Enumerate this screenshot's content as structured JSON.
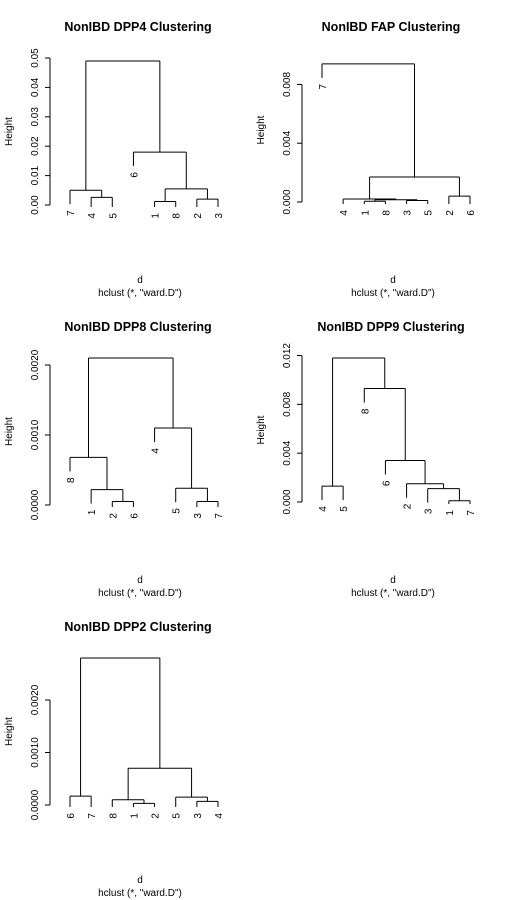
{
  "chart_data": [
    {
      "type": "dendrogram",
      "title": "NonIBD DPP4 Clustering",
      "ylabel": "Height",
      "xlabel": "d",
      "sublabel": "hclust (*, \"ward.D\")",
      "ylim": [
        0,
        0.05
      ],
      "yticks": [
        "0.00",
        "0.01",
        "0.02",
        "0.03",
        "0.04",
        "0.05"
      ],
      "ytick_values": [
        0,
        0.01,
        0.02,
        0.03,
        0.04,
        0.05
      ],
      "leaves": [
        "7",
        "4",
        "5",
        "6",
        "1",
        "8",
        "2",
        "3"
      ],
      "merges": [
        {
          "left": "L1",
          "right": "L2",
          "height": 0.0026
        },
        {
          "left": "L0",
          "right": "M0",
          "height": 0.005
        },
        {
          "left": "L4",
          "right": "L5",
          "height": 0.0012
        },
        {
          "left": "L6",
          "right": "L7",
          "height": 0.002
        },
        {
          "left": "M2",
          "right": "M3",
          "height": 0.0055
        },
        {
          "left": "L3",
          "right": "M4",
          "height": 0.018
        },
        {
          "left": "M1",
          "right": "M5",
          "height": 0.049
        }
      ]
    },
    {
      "type": "dendrogram",
      "title": "NonIBD FAP Clustering",
      "ylabel": "Height",
      "xlabel": "d",
      "sublabel": "hclust (*, \"ward.D\")",
      "ylim": [
        0,
        0.0098
      ],
      "yticks": [
        "0.000",
        "0.004",
        "0.008"
      ],
      "ytick_values": [
        0,
        0.004,
        0.008
      ],
      "leaves": [
        "7",
        "4",
        "1",
        "8",
        "3",
        "5",
        "2",
        "6"
      ],
      "merges": [
        {
          "left": "L2",
          "right": "L3",
          "height": 5e-05
        },
        {
          "left": "L4",
          "right": "L5",
          "height": 0.0001
        },
        {
          "left": "M0",
          "right": "M1",
          "height": 0.00015
        },
        {
          "left": "L1",
          "right": "M2",
          "height": 0.0002
        },
        {
          "left": "L6",
          "right": "L7",
          "height": 0.0004
        },
        {
          "left": "M3",
          "right": "M4",
          "height": 0.0017
        },
        {
          "left": "L0",
          "right": "M5",
          "height": 0.0094
        }
      ]
    },
    {
      "type": "dendrogram",
      "title": "NonIBD DPP8 Clustering",
      "ylabel": "Height",
      "xlabel": "d",
      "sublabel": "hclust (*, \"ward.D\")",
      "ylim": [
        0,
        0.0021
      ],
      "yticks": [
        "0.0000",
        "0.0010",
        "0.0020"
      ],
      "ytick_values": [
        0,
        0.001,
        0.002
      ],
      "leaves": [
        "8",
        "1",
        "2",
        "6",
        "4",
        "5",
        "3",
        "7"
      ],
      "merges": [
        {
          "left": "L2",
          "right": "L3",
          "height": 5e-05
        },
        {
          "left": "L1",
          "right": "M0",
          "height": 0.00022
        },
        {
          "left": "L0",
          "right": "M1",
          "height": 0.00068
        },
        {
          "left": "L6",
          "right": "L7",
          "height": 5e-05
        },
        {
          "left": "L5",
          "right": "M3",
          "height": 0.00024
        },
        {
          "left": "L4",
          "right": "M4",
          "height": 0.0011
        },
        {
          "left": "M2",
          "right": "M5",
          "height": 0.0021
        }
      ]
    },
    {
      "type": "dendrogram",
      "title": "NonIBD DPP9 Clustering",
      "ylabel": "Height",
      "xlabel": "d",
      "sublabel": "hclust (*, \"ward.D\")",
      "ylim": [
        0,
        0.0118
      ],
      "yticks": [
        "0.000",
        "0.004",
        "0.008",
        "0.012"
      ],
      "ytick_values": [
        0,
        0.004,
        0.008,
        0.012
      ],
      "leaves": [
        "4",
        "5",
        "8",
        "6",
        "2",
        "3",
        "1",
        "7"
      ],
      "merges": [
        {
          "left": "L0",
          "right": "L1",
          "height": 0.0013
        },
        {
          "left": "L6",
          "right": "L7",
          "height": 0.0001
        },
        {
          "left": "L5",
          "right": "M1",
          "height": 0.0011
        },
        {
          "left": "L4",
          "right": "M2",
          "height": 0.0015
        },
        {
          "left": "L3",
          "right": "M3",
          "height": 0.0034
        },
        {
          "left": "L2",
          "right": "M4",
          "height": 0.0093
        },
        {
          "left": "M0",
          "right": "M5",
          "height": 0.0118
        }
      ]
    },
    {
      "type": "dendrogram",
      "title": "NonIBD DPP2 Clustering",
      "ylabel": "Height",
      "xlabel": "d",
      "sublabel": "hclust (*, \"ward.D\")",
      "ylim": [
        0,
        0.0028
      ],
      "yticks": [
        "0.0000",
        "0.0010",
        "0.0020"
      ],
      "ytick_values": [
        0,
        0.001,
        0.002
      ],
      "leaves": [
        "6",
        "7",
        "8",
        "1",
        "2",
        "5",
        "3",
        "4"
      ],
      "merges": [
        {
          "left": "L0",
          "right": "L1",
          "height": 0.00017
        },
        {
          "left": "L3",
          "right": "L4",
          "height": 3e-05
        },
        {
          "left": "L2",
          "right": "M1",
          "height": 0.0001
        },
        {
          "left": "L6",
          "right": "L7",
          "height": 7e-05
        },
        {
          "left": "L5",
          "right": "M3",
          "height": 0.00015
        },
        {
          "left": "M2",
          "right": "M4",
          "height": 0.0007
        },
        {
          "left": "M0",
          "right": "M5",
          "height": 0.0028
        }
      ]
    }
  ]
}
